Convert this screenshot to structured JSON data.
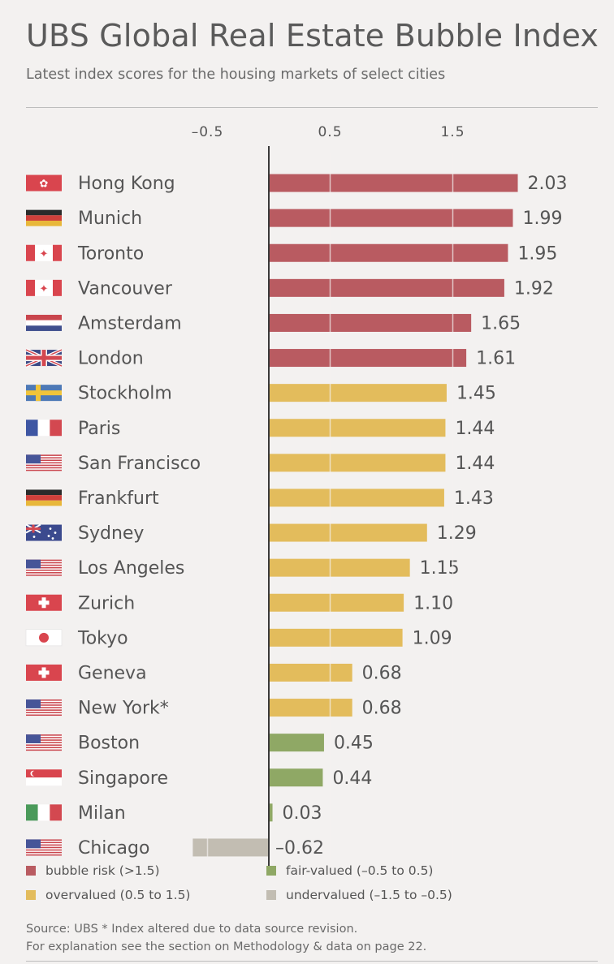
{
  "header": {
    "title": "UBS Global Real Estate Bubble Index",
    "subtitle": "Latest index scores for the housing markets of select cities"
  },
  "colors": {
    "bubble_risk": "#b95b61",
    "overvalued": "#e3bc5c",
    "fair_valued": "#8fa865",
    "undervalued": "#c2bdb2"
  },
  "chart_data": {
    "type": "bar",
    "orientation": "horizontal",
    "x_ticks": [
      "–0.5",
      "0.5",
      "1.5"
    ],
    "xlim": [
      -1.0,
      2.2
    ],
    "categories": [
      "Hong Kong",
      "Munich",
      "Toronto",
      "Vancouver",
      "Amsterdam",
      "London",
      "Stockholm",
      "Paris",
      "San Francisco",
      "Frankfurt",
      "Sydney",
      "Los Angeles",
      "Zurich",
      "Tokyo",
      "Geneva",
      "New York*",
      "Boston",
      "Singapore",
      "Milan",
      "Chicago"
    ],
    "values": [
      2.03,
      1.99,
      1.95,
      1.92,
      1.65,
      1.61,
      1.45,
      1.44,
      1.44,
      1.43,
      1.29,
      1.15,
      1.1,
      1.09,
      0.68,
      0.68,
      0.45,
      0.44,
      0.03,
      -0.62
    ],
    "value_labels": [
      "2.03",
      "1.99",
      "1.95",
      "1.92",
      "1.65",
      "1.61",
      "1.45",
      "1.44",
      "1.44",
      "1.43",
      "1.29",
      "1.15",
      "1.10",
      "1.09",
      "0.68",
      "0.68",
      "0.45",
      "0.44",
      "0.03",
      "–0.62"
    ],
    "flags": [
      "flag-hong-kong",
      "flag-germany",
      "flag-canada",
      "flag-canada",
      "flag-netherlands",
      "flag-uk",
      "flag-sweden",
      "flag-france",
      "flag-usa",
      "flag-germany",
      "flag-australia",
      "flag-usa",
      "flag-switzerland",
      "flag-japan",
      "flag-switzerland",
      "flag-usa",
      "flag-usa",
      "flag-singapore",
      "flag-italy",
      "flag-usa"
    ],
    "legend": [
      {
        "label": "bubble risk (>1.5)",
        "color": "#b95b61"
      },
      {
        "label": "fair-valued (–0.5 to 0.5)",
        "color": "#8fa865"
      },
      {
        "label": "overvalued (0.5 to 1.5)",
        "color": "#e3bc5c"
      },
      {
        "label": "undervalued (–1.5 to –0.5)",
        "color": "#c2bdb2"
      }
    ]
  },
  "footer": {
    "source_line": "Source: UBS  * Index altered due to data source revision.",
    "note_line": "For explanation see the section on Methodology & data on page 22."
  }
}
